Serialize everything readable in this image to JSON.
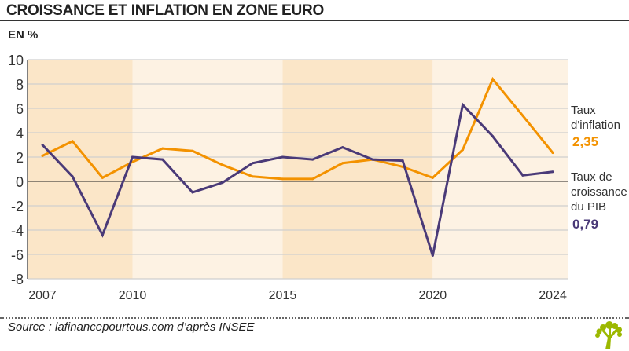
{
  "header": {
    "title": "CROISSANCE ET INFLATION EN ZONE EURO",
    "unit": "EN %"
  },
  "footer": {
    "source": "Source : lafinancepourtous.com d’après INSEE"
  },
  "colors": {
    "inflation": "#f39200",
    "gdp": "#4a3a78",
    "band_dark": "#fbe6c8",
    "band_light": "#fdf2e3",
    "logo": "#9cb800"
  },
  "chart_data": {
    "type": "line",
    "title": "CROISSANCE ET INFLATION EN ZONE EURO",
    "ylabel": "EN %",
    "ylim": [
      -8,
      10
    ],
    "yticks": [
      10,
      8,
      6,
      4,
      2,
      0,
      -2,
      -4,
      -6,
      -8
    ],
    "xticks": [
      2007,
      2010,
      2015,
      2020,
      2024
    ],
    "x": [
      2007,
      2008,
      2009,
      2010,
      2011,
      2012,
      2013,
      2014,
      2015,
      2016,
      2017,
      2018,
      2019,
      2020,
      2021,
      2022,
      2023,
      2024
    ],
    "grid": true,
    "bands": [
      {
        "from": 2006.5,
        "to": 2010,
        "shade": "dark"
      },
      {
        "from": 2010,
        "to": 2015,
        "shade": "light"
      },
      {
        "from": 2015,
        "to": 2020,
        "shade": "dark"
      },
      {
        "from": 2020,
        "to": 2024.5,
        "shade": "light"
      }
    ],
    "series": [
      {
        "name": "Taux d'inflation",
        "label_lines": [
          "Taux",
          "d'inflation"
        ],
        "last_value_label": "2,35",
        "color": "#f39200",
        "values": [
          2.1,
          3.3,
          0.3,
          1.6,
          2.7,
          2.5,
          1.35,
          0.4,
          0.2,
          0.2,
          1.5,
          1.8,
          1.2,
          0.3,
          2.6,
          8.4,
          5.4,
          2.35
        ]
      },
      {
        "name": "Taux de croissance du PIB",
        "label_lines": [
          "Taux de",
          "croissance",
          "du PIB"
        ],
        "last_value_label": "0,79",
        "color": "#4a3a78",
        "values": [
          3.0,
          0.4,
          -4.4,
          2.0,
          1.8,
          -0.9,
          -0.1,
          1.5,
          2.0,
          1.8,
          2.8,
          1.8,
          1.7,
          -6.1,
          6.3,
          3.7,
          0.5,
          0.79
        ]
      }
    ]
  }
}
